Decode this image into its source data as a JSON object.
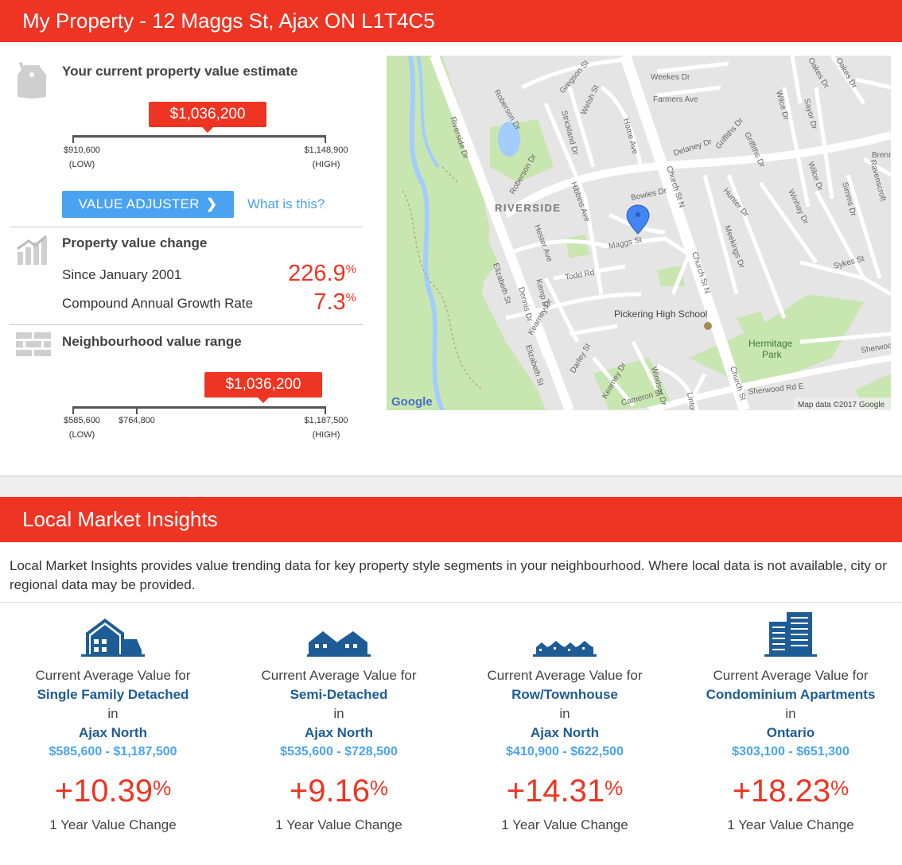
{
  "header": {
    "title": "My Property - 12 Maggs St, Ajax ON L1T4C5"
  },
  "estimate": {
    "title": "Your current property value estimate",
    "value": "$1,036,200",
    "low_value": "$910,600",
    "low_label": "(LOW)",
    "high_value": "$1,148,900",
    "high_label": "(HIGH)",
    "position_fraction": 0.53
  },
  "adjuster": {
    "button_label": "VALUE ADJUSTER",
    "link_label": "What is this?"
  },
  "value_change": {
    "title": "Property value change",
    "rows": [
      {
        "label": "Since January 2001",
        "value": "226.9",
        "unit": "%"
      },
      {
        "label": "Compound Annual Growth Rate",
        "value": "7.3",
        "unit": "%"
      }
    ]
  },
  "neighbourhood": {
    "title": "Neighbourhood value range",
    "value": "$1,036,200",
    "low_value": "$585,600",
    "low_label": "(LOW)",
    "mid_value": "$764,800",
    "high_value": "$1,187,500",
    "high_label": "(HIGH)",
    "position_fraction": 0.755,
    "mid_fraction": 0.27
  },
  "map": {
    "labels": {
      "riverside_area": "RIVERSIDE",
      "school": "Pickering High School",
      "park_line1": "Hermitage",
      "park_line2": "Park",
      "maggs": "Maggs St",
      "bowles": "Bowles Dr",
      "todd": "Todd Rd",
      "delaney": "Delaney Dr",
      "church1": "Church St N",
      "church2": "Church St N",
      "church3": "Church St",
      "elizabeth1": "Elizabeth St",
      "elizabeth2": "Elizabeth St",
      "riverside_dr": "Riverside Dr",
      "roberson1": "Roberson Dr",
      "roberson2": "Roberson Dr",
      "strickland": "Strickland Dr",
      "hibbins": "Hibbins Ave",
      "hester": "Hester Ave",
      "home": "Home Ave",
      "welsh": "Welsh St",
      "gregson": "Gregson St",
      "weekes": "Weekes Dr",
      "farmers": "Farmers Ave",
      "griffiths1": "Griffiths Dr",
      "griffiths2": "Griffiths Dr",
      "wilce1": "Wilce Dr",
      "wilce2": "Wilce Dr",
      "sayor": "Sayor Dr",
      "oakes1": "Oakes Dr",
      "oakes2": "Oakes Dr",
      "hunter": "Hunter Dr",
      "meekings": "Meekings Dr",
      "winhay": "Winhay Dr",
      "simms": "Simms Dr",
      "ravenscroft": "Ravenscroft",
      "brenn": "Brenn",
      "sykes": "Sykes St",
      "sherwood1": "Sherwood Rd E",
      "sherwood2": "Sherwood",
      "kemp": "Kemp Dr",
      "dennis": "Dennis Dr",
      "kearney1": "Kearney Dr",
      "kearney2": "Kearney Dr",
      "darley": "Darley St",
      "cameron": "Cameron St",
      "windsor": "Windsor Dr",
      "linton": "Linton",
      "google": "Google",
      "attribution": "Map data ©2017 Google"
    },
    "colors": {
      "park": "#c8e6b0",
      "water": "#a3ccff",
      "road": "#ffffff",
      "base": "#e5e5e5",
      "pin": "#4285f4"
    }
  },
  "lmi": {
    "title": "Local Market Insights",
    "description": "Local Market Insights provides value trending data for key property style segments in your neighbourhood. Where local data is not available, city or regional data may be provided.",
    "columns": [
      {
        "icon": "single-family-house-icon",
        "line1": "Current Average Value for",
        "style": "Single Family Detached",
        "in": "in",
        "area": "Ajax North",
        "range": "$585,600 - $1,187,500",
        "pct": "+10.39",
        "unit": "%",
        "change_label": "1 Year Value Change"
      },
      {
        "icon": "semi-detached-house-icon",
        "line1": "Current Average Value for",
        "style": "Semi-Detached",
        "in": "in",
        "area": "Ajax North",
        "range": "$535,600 - $728,500",
        "pct": "+9.16",
        "unit": "%",
        "change_label": "1 Year Value Change"
      },
      {
        "icon": "townhouse-row-icon",
        "line1": "Current Average Value for",
        "style": "Row/Townhouse",
        "in": "in",
        "area": "Ajax North",
        "range": "$410,900 - $622,500",
        "pct": "+14.31",
        "unit": "%",
        "change_label": "1 Year Value Change"
      },
      {
        "icon": "condominium-building-icon",
        "line1": "Current Average Value for",
        "style": "Condominium Apartments",
        "in": "in",
        "area": "Ontario",
        "range": "$303,100 - $651,300",
        "pct": "+18.23",
        "unit": "%",
        "change_label": "1 Year Value Change"
      }
    ]
  }
}
